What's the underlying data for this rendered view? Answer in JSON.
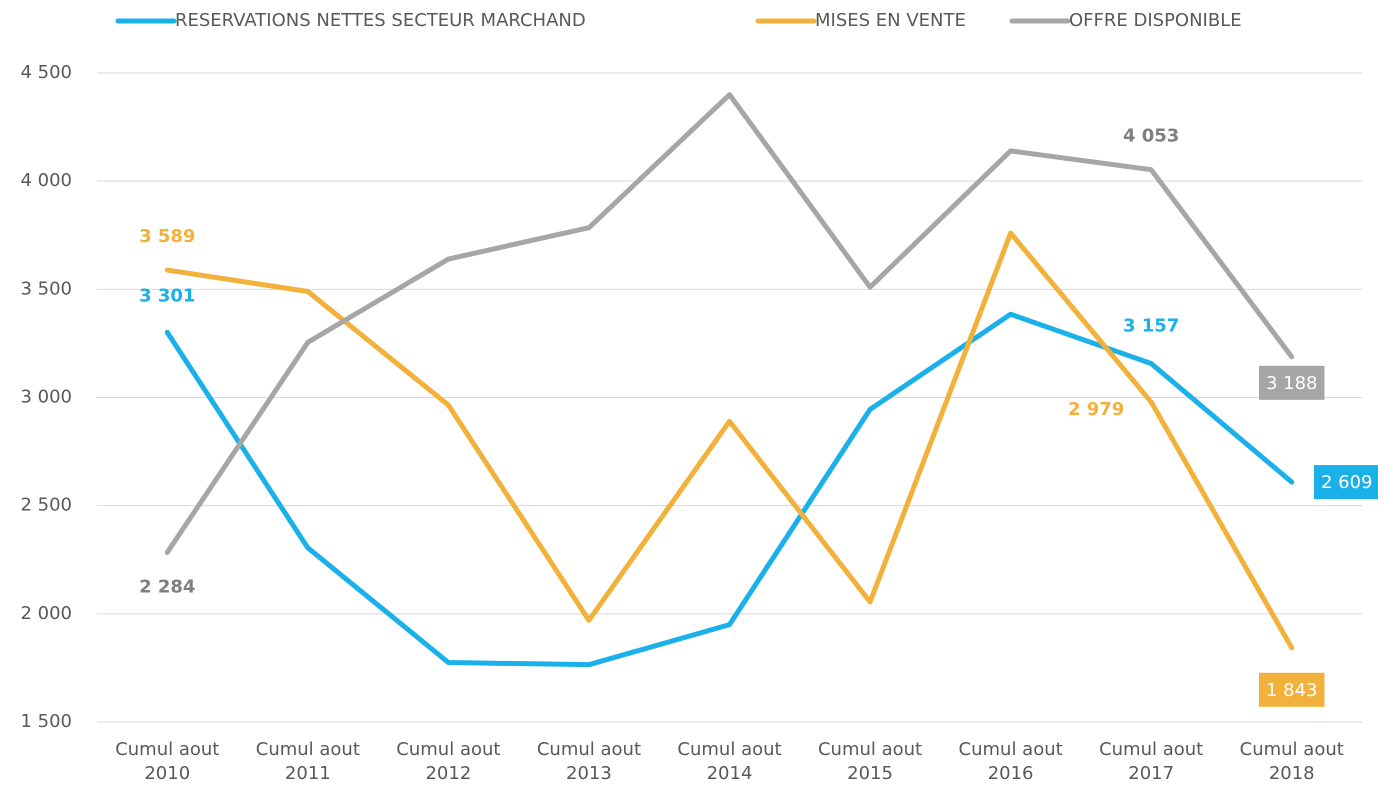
{
  "chart_data": {
    "type": "line",
    "categories": [
      "Cumul aout 2010",
      "Cumul aout 2011",
      "Cumul aout 2012",
      "Cumul aout 2013",
      "Cumul aout 2014",
      "Cumul aout 2015",
      "Cumul aout 2016",
      "Cumul aout 2017",
      "Cumul aout 2018"
    ],
    "series": [
      {
        "name": "RESERVATIONS NETTES SECTEUR MARCHAND",
        "color": "#1ab0ea",
        "values": [
          3301,
          2305,
          1775,
          1765,
          1950,
          2945,
          3385,
          3157,
          2609
        ],
        "value_labels": [
          "3 301",
          null,
          null,
          null,
          null,
          null,
          null,
          "3 157",
          "2 609"
        ]
      },
      {
        "name": "MISES EN VENTE",
        "color": "#f2b13a",
        "values": [
          3589,
          3490,
          2965,
          1970,
          2890,
          2055,
          3760,
          2979,
          1843
        ],
        "value_labels": [
          "3 589",
          null,
          null,
          null,
          null,
          null,
          null,
          "2 979",
          "1 843"
        ]
      },
      {
        "name": "OFFRE DISPONIBLE",
        "color": "#a6a6a6",
        "values": [
          2284,
          3255,
          3640,
          3785,
          4400,
          3510,
          4140,
          4053,
          3188
        ],
        "value_labels": [
          "2 284",
          null,
          null,
          null,
          null,
          null,
          null,
          "4 053",
          "3 188"
        ]
      }
    ],
    "ylim": [
      1500,
      4500
    ],
    "yticks": [
      {
        "value": 1500,
        "label": "1 500"
      },
      {
        "value": 2000,
        "label": "2 000"
      },
      {
        "value": 2500,
        "label": "2 500"
      },
      {
        "value": 3000,
        "label": "3 000"
      },
      {
        "value": 3500,
        "label": "3 500"
      },
      {
        "value": 4000,
        "label": "4 000"
      },
      {
        "value": 4500,
        "label": "4 500"
      }
    ],
    "grid": true,
    "legend": "top"
  }
}
